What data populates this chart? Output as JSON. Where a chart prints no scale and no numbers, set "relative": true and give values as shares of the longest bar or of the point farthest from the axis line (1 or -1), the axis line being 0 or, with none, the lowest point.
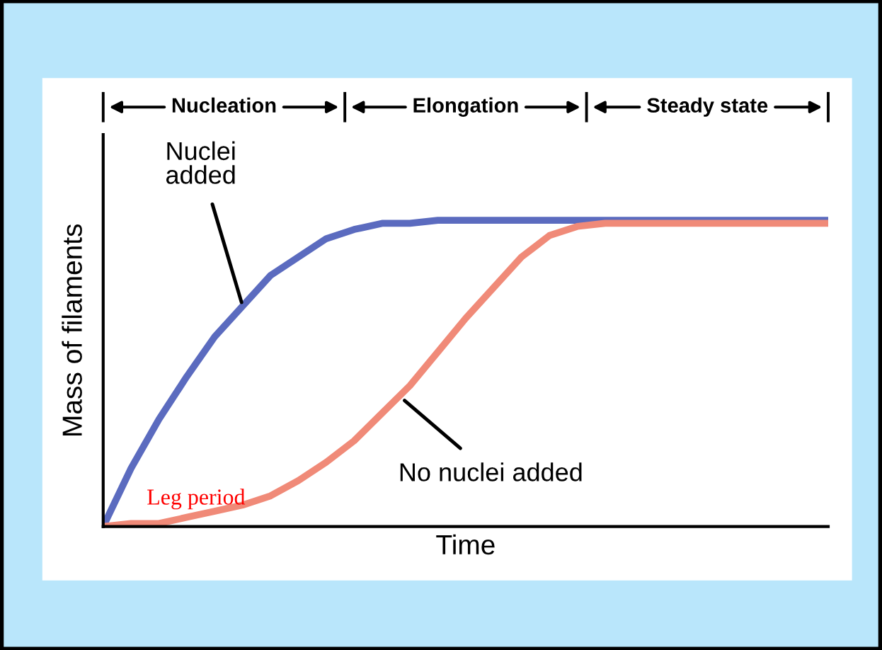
{
  "chart_data": {
    "type": "line",
    "relative": true,
    "xlabel": "Time",
    "ylabel": "Mass of filaments",
    "categories": [
      null,
      null,
      null,
      null,
      null,
      null,
      null,
      null,
      null,
      null,
      null,
      null,
      null,
      null,
      null,
      null,
      null,
      null,
      null,
      null,
      null,
      null,
      null,
      null,
      null,
      null,
      null
    ],
    "series": [
      {
        "name": "Nuclei added",
        "color": "#5b6bbf",
        "values": [
          0,
          0.19,
          0.35,
          0.49,
          0.62,
          0.72,
          0.82,
          0.88,
          0.94,
          0.97,
          0.99,
          0.99,
          1,
          1,
          1,
          1,
          1,
          1,
          1,
          1,
          1,
          1,
          1,
          1,
          1,
          1,
          1
        ]
      },
      {
        "name": "No nuclei added",
        "color": "#f08a78",
        "values": [
          0,
          0.01,
          0.01,
          0.03,
          0.05,
          0.07,
          0.1,
          0.15,
          0.21,
          0.28,
          0.37,
          0.46,
          0.57,
          0.68,
          0.78,
          0.88,
          0.95,
          0.98,
          0.99,
          0.99,
          0.99,
          0.99,
          0.99,
          0.99,
          0.99,
          0.99,
          0.99
        ]
      }
    ],
    "annotations": [
      "Nucleation",
      "Elongation",
      "Steady state",
      "Leg period"
    ],
    "legend": false,
    "marker": "none",
    "line_style": "solid"
  }
}
